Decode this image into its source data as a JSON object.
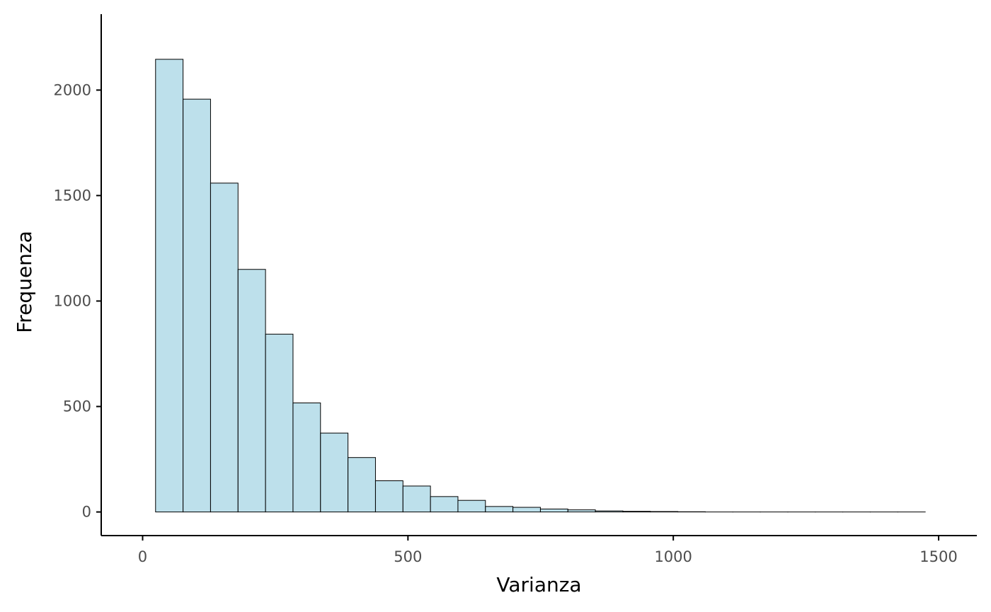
{
  "chart_data": {
    "type": "bar",
    "title": "",
    "xlabel": "Varianza",
    "ylabel": "Frequenza",
    "xlim": [
      -78,
      1572
    ],
    "ylim": [
      -112,
      2360
    ],
    "x_ticks": [
      0,
      500,
      1000,
      1500
    ],
    "x_tick_labels": [
      "0",
      "500",
      "1000",
      "1500"
    ],
    "y_ticks": [
      0,
      500,
      1000,
      1500,
      2000
    ],
    "y_tick_labels": [
      "0",
      "500",
      "1000",
      "1500",
      "2000"
    ],
    "grid": false,
    "bins": [
      {
        "x0": 24.4,
        "x1": 76.2,
        "count": 2146
      },
      {
        "x0": 76.2,
        "x1": 128.0,
        "count": 1957
      },
      {
        "x0": 128.0,
        "x1": 179.8,
        "count": 1559
      },
      {
        "x0": 179.8,
        "x1": 231.6,
        "count": 1150
      },
      {
        "x0": 231.6,
        "x1": 283.4,
        "count": 843
      },
      {
        "x0": 283.4,
        "x1": 335.2,
        "count": 517
      },
      {
        "x0": 335.2,
        "x1": 387.0,
        "count": 374
      },
      {
        "x0": 387.0,
        "x1": 438.8,
        "count": 258
      },
      {
        "x0": 438.8,
        "x1": 490.6,
        "count": 148
      },
      {
        "x0": 490.6,
        "x1": 542.4,
        "count": 123
      },
      {
        "x0": 542.4,
        "x1": 594.2,
        "count": 73
      },
      {
        "x0": 594.2,
        "x1": 646.0,
        "count": 55
      },
      {
        "x0": 646.0,
        "x1": 697.8,
        "count": 26
      },
      {
        "x0": 697.8,
        "x1": 749.6,
        "count": 22
      },
      {
        "x0": 749.6,
        "x1": 801.4,
        "count": 14
      },
      {
        "x0": 801.4,
        "x1": 853.2,
        "count": 10
      },
      {
        "x0": 853.2,
        "x1": 905.0,
        "count": 5
      },
      {
        "x0": 905.0,
        "x1": 956.8,
        "count": 3
      },
      {
        "x0": 956.8,
        "x1": 1008.6,
        "count": 2
      },
      {
        "x0": 1008.6,
        "x1": 1060.4,
        "count": 1
      },
      {
        "x0": 1060.4,
        "x1": 1112.2,
        "count": 0
      },
      {
        "x0": 1112.2,
        "x1": 1164.0,
        "count": 0
      },
      {
        "x0": 1164.0,
        "x1": 1215.8,
        "count": 0
      },
      {
        "x0": 1215.8,
        "x1": 1267.6,
        "count": 0
      },
      {
        "x0": 1267.6,
        "x1": 1319.4,
        "count": 0
      },
      {
        "x0": 1319.4,
        "x1": 1371.2,
        "count": 0
      },
      {
        "x0": 1371.2,
        "x1": 1423.0,
        "count": 0
      },
      {
        "x0": 1423.0,
        "x1": 1474.8,
        "count": 0
      }
    ],
    "colors": {
      "bar_fill": "#add8e6",
      "bar_fill_opacity": 0.8,
      "bar_stroke": "#000000",
      "axis": "#000000",
      "tick_label": "#4d4d4d"
    }
  }
}
